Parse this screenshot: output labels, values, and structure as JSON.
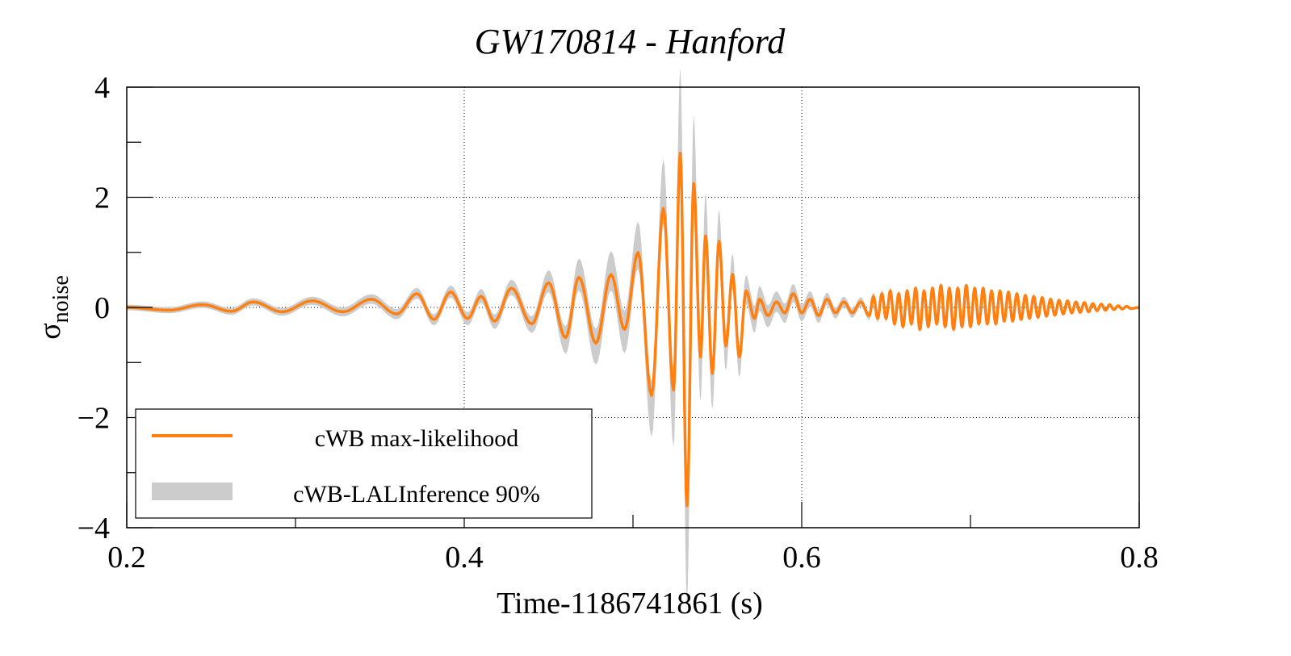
{
  "chart_data": {
    "type": "line",
    "title": "GW170814 - Hanford",
    "xlabel": "Time-1186741861 (s)",
    "ylabel": "σ",
    "ylabel_subscript": "noise",
    "xlim": [
      0.2,
      0.8
    ],
    "ylim": [
      -4,
      4
    ],
    "xticks": [
      0.2,
      0.4,
      0.6,
      0.8
    ],
    "xtick_labels": [
      "0.2",
      "0.4",
      "0.6",
      "0.8"
    ],
    "yticks": [
      4,
      2,
      0,
      -2,
      -4
    ],
    "ytick_labels": [
      "4",
      "2",
      "0",
      "−2",
      "−4"
    ],
    "grid": true,
    "legend_position": "bottom-left",
    "series": [
      {
        "name": "cWB max-likelihood",
        "color": "#ff8010",
        "points": [
          [
            0.2,
            0
          ],
          [
            0.225,
            -0.05
          ],
          [
            0.245,
            0.05
          ],
          [
            0.262,
            -0.07
          ],
          [
            0.275,
            0.1
          ],
          [
            0.292,
            -0.08
          ],
          [
            0.31,
            0.12
          ],
          [
            0.328,
            -0.08
          ],
          [
            0.345,
            0.15
          ],
          [
            0.36,
            -0.12
          ],
          [
            0.372,
            0.25
          ],
          [
            0.382,
            -0.22
          ],
          [
            0.392,
            0.28
          ],
          [
            0.402,
            -0.2
          ],
          [
            0.41,
            0.2
          ],
          [
            0.418,
            -0.25
          ],
          [
            0.428,
            0.35
          ],
          [
            0.44,
            -0.3
          ],
          [
            0.45,
            0.45
          ],
          [
            0.46,
            -0.55
          ],
          [
            0.468,
            0.55
          ],
          [
            0.478,
            -0.65
          ],
          [
            0.487,
            0.6
          ],
          [
            0.495,
            -0.4
          ],
          [
            0.503,
            1.0
          ],
          [
            0.511,
            -1.6
          ],
          [
            0.518,
            1.8
          ],
          [
            0.524,
            -1.5
          ],
          [
            0.528,
            2.8
          ],
          [
            0.532,
            -3.6
          ],
          [
            0.536,
            2.25
          ],
          [
            0.54,
            -0.9
          ],
          [
            0.543,
            1.3
          ],
          [
            0.547,
            -1.2
          ],
          [
            0.551,
            1.2
          ],
          [
            0.555,
            -0.7
          ],
          [
            0.559,
            0.6
          ],
          [
            0.563,
            -0.9
          ],
          [
            0.567,
            0.3
          ],
          [
            0.572,
            -0.2
          ],
          [
            0.575,
            0.15
          ],
          [
            0.58,
            -0.15
          ],
          [
            0.585,
            0.1
          ],
          [
            0.59,
            -0.1
          ],
          [
            0.595,
            0.25
          ],
          [
            0.6,
            -0.1
          ],
          [
            0.605,
            0.15
          ],
          [
            0.61,
            -0.15
          ],
          [
            0.615,
            0.15
          ],
          [
            0.62,
            -0.1
          ],
          [
            0.625,
            0.1
          ],
          [
            0.63,
            -0.1
          ],
          [
            0.635,
            0.1
          ],
          [
            0.64,
            -0.15
          ],
          [
            0.6425,
            0.2
          ],
          [
            0.645,
            -0.2
          ],
          [
            0.6475,
            0.25
          ],
          [
            0.65,
            -0.2
          ],
          [
            0.6525,
            0.3
          ],
          [
            0.655,
            -0.3
          ],
          [
            0.6575,
            0.25
          ],
          [
            0.66,
            -0.35
          ],
          [
            0.6625,
            0.3
          ],
          [
            0.665,
            -0.3
          ],
          [
            0.6675,
            0.35
          ],
          [
            0.67,
            -0.4
          ],
          [
            0.6725,
            0.3
          ],
          [
            0.675,
            -0.35
          ],
          [
            0.6775,
            0.35
          ],
          [
            0.68,
            -0.3
          ],
          [
            0.6825,
            0.4
          ],
          [
            0.685,
            -0.35
          ],
          [
            0.6875,
            0.35
          ],
          [
            0.69,
            -0.4
          ],
          [
            0.6925,
            0.35
          ],
          [
            0.695,
            -0.35
          ],
          [
            0.6975,
            0.4
          ],
          [
            0.7,
            -0.35
          ],
          [
            0.7025,
            0.35
          ],
          [
            0.705,
            -0.3
          ],
          [
            0.7075,
            0.35
          ],
          [
            0.71,
            -0.3
          ],
          [
            0.7125,
            0.3
          ],
          [
            0.715,
            -0.3
          ],
          [
            0.7175,
            0.3
          ],
          [
            0.72,
            -0.25
          ],
          [
            0.7225,
            0.28
          ],
          [
            0.725,
            -0.25
          ],
          [
            0.7275,
            0.25
          ],
          [
            0.73,
            -0.22
          ],
          [
            0.7325,
            0.22
          ],
          [
            0.735,
            -0.2
          ],
          [
            0.7375,
            0.2
          ],
          [
            0.74,
            -0.18
          ],
          [
            0.7425,
            0.18
          ],
          [
            0.745,
            -0.16
          ],
          [
            0.7475,
            0.15
          ],
          [
            0.75,
            -0.14
          ],
          [
            0.7525,
            0.13
          ],
          [
            0.755,
            -0.12
          ],
          [
            0.7575,
            0.12
          ],
          [
            0.76,
            -0.1
          ],
          [
            0.7625,
            0.1
          ],
          [
            0.765,
            -0.09
          ],
          [
            0.7675,
            0.09
          ],
          [
            0.77,
            -0.08
          ],
          [
            0.7725,
            0.07
          ],
          [
            0.775,
            -0.06
          ],
          [
            0.7775,
            0.06
          ],
          [
            0.78,
            -0.05
          ],
          [
            0.7825,
            0.05
          ],
          [
            0.785,
            -0.04
          ],
          [
            0.7875,
            0.03
          ],
          [
            0.79,
            -0.03
          ],
          [
            0.7925,
            0.02
          ],
          [
            0.795,
            -0.02
          ],
          [
            0.8,
            0
          ]
        ]
      },
      {
        "name": "cWB-LALInference 90%",
        "color": "#cccccc",
        "type": "band",
        "halfwidth": [
          [
            0.2,
            0.05
          ],
          [
            0.3,
            0.07
          ],
          [
            0.38,
            0.1
          ],
          [
            0.44,
            0.15
          ],
          [
            0.47,
            0.3
          ],
          [
            0.5,
            0.4
          ],
          [
            0.52,
            0.6
          ],
          [
            0.53,
            0.9
          ],
          [
            0.545,
            0.5
          ],
          [
            0.56,
            0.3
          ],
          [
            0.58,
            0.2
          ],
          [
            0.62,
            0.1
          ],
          [
            0.66,
            0.05
          ],
          [
            0.8,
            0.02
          ]
        ]
      }
    ]
  }
}
